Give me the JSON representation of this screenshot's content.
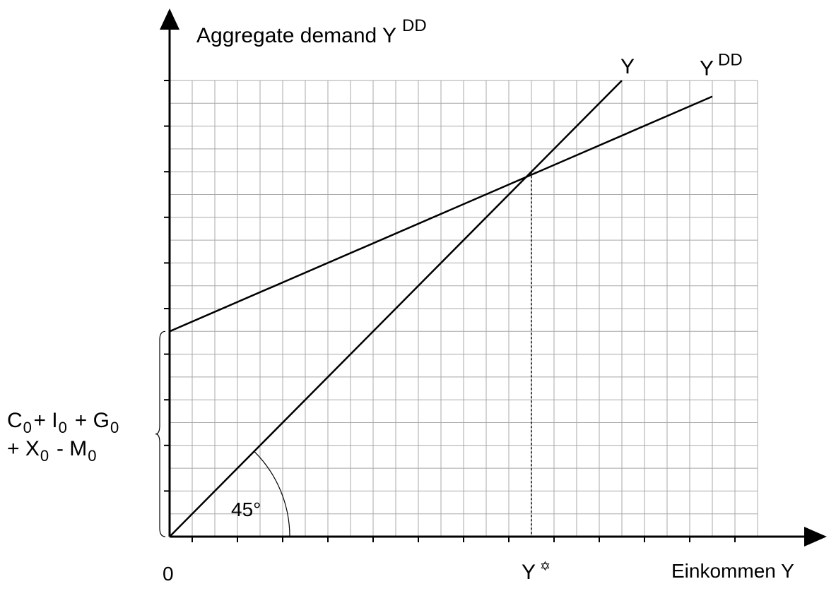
{
  "chart_data": {
    "type": "line",
    "x_range": [
      0,
      26
    ],
    "y_range": [
      0,
      20
    ],
    "grid": true,
    "ylabel": {
      "main": "Aggregate demand Y",
      "sup": "DD"
    },
    "xlabel": "Einkommen Y",
    "origin_label": "0",
    "series": [
      {
        "name": "Y",
        "sup": "",
        "x": [
          0,
          20
        ],
        "y": [
          0,
          20
        ]
      },
      {
        "name": "Y",
        "sup": "DD",
        "x": [
          0,
          24
        ],
        "y": [
          9,
          19.3
        ]
      }
    ],
    "equilibrium": {
      "x": 16,
      "y": 16,
      "label": "Y",
      "marker": "✡"
    },
    "autonomous_label": {
      "line1": [
        {
          "t": "C",
          "sub": "0"
        },
        {
          "t": "+ I",
          "sub": "0"
        },
        {
          "t": " + G",
          "sub": "0"
        }
      ],
      "line2": [
        {
          "t": "+ X",
          "sub": "0"
        },
        {
          "t": " - M",
          "sub": "0"
        }
      ]
    },
    "angle_label": "45°"
  }
}
